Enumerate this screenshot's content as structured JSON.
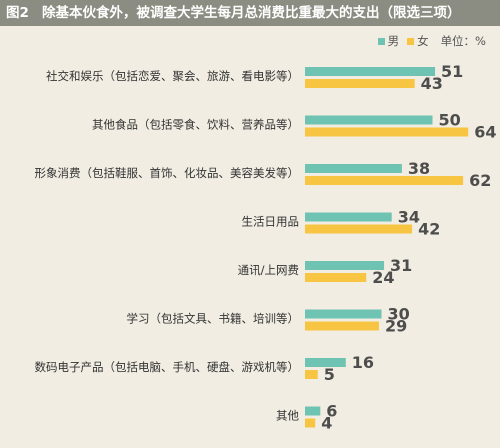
{
  "header": {
    "figure_no": "图2",
    "title": "除基本伙食外，被调查大学生每月总消费比重最大的支出（限选三项）"
  },
  "legend": {
    "male": "男",
    "female": "女",
    "unit": "单位：%"
  },
  "colors": {
    "male": "#6fc3b3",
    "female": "#f7c541",
    "header_bg": "#8b8d82",
    "background": "#f1ede2"
  },
  "chart_data": {
    "type": "bar",
    "orientation": "horizontal",
    "title": "除基本伙食外，被调查大学生每月总消费比重最大的支出（限选三项）",
    "unit": "%",
    "categories": [
      "社交和娱乐（包括恋爱、聚会、旅游、看电影等）",
      "其他食品（包括零食、饮料、营养品等）",
      "形象消费（包括鞋服、首饰、化妆品、美容美发等）",
      "生活日用品",
      "通讯/上网费",
      "学习（包括文具、书籍、培训等）",
      "数码电子产品（包括电脑、手机、硬盘、游戏机等）",
      "其他"
    ],
    "series": [
      {
        "name": "男",
        "values": [
          51,
          50,
          38,
          34,
          31,
          30,
          16,
          6
        ]
      },
      {
        "name": "女",
        "values": [
          43,
          64,
          62,
          42,
          24,
          29,
          5,
          4
        ]
      }
    ],
    "legend_position": "top-right",
    "grid": false
  }
}
